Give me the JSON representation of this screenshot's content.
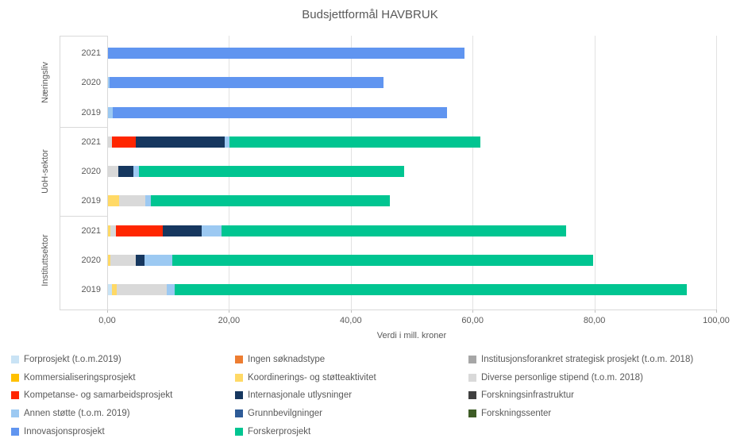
{
  "chart_data": {
    "type": "bar",
    "orientation": "horizontal-stacked",
    "title": "Budsjettformål HAVBRUK",
    "xlabel": "Verdi i mill. kroner",
    "ylabel": "",
    "xlim": [
      0,
      100
    ],
    "grid": true,
    "legend_position": "bottom",
    "x_tick_values": [
      0,
      20,
      40,
      60,
      80,
      100
    ],
    "x_tick_labels": [
      "0,00",
      "20,00",
      "40,00",
      "60,00",
      "80,00",
      "100,00"
    ],
    "groups": [
      {
        "label": "Næringsliv",
        "rows": [
          {
            "year": "2021",
            "total": 58.5,
            "segments": [
              {
                "series": "Innovasjonsprosjekt",
                "value": 58.5
              }
            ]
          },
          {
            "year": "2020",
            "total": 45.2,
            "segments": [
              {
                "series": "Annen støtte (t.o.m. 2019)",
                "value": 0.3
              },
              {
                "series": "Innovasjonsprosjekt",
                "value": 44.9
              }
            ]
          },
          {
            "year": "2019",
            "total": 55.7,
            "segments": [
              {
                "series": "Annen støtte (t.o.m. 2019)",
                "value": 0.8
              },
              {
                "series": "Innovasjonsprosjekt",
                "value": 54.9
              }
            ]
          }
        ]
      },
      {
        "label": "UoH-sektor",
        "rows": [
          {
            "year": "2021",
            "total": 61.1,
            "segments": [
              {
                "series": "Diverse personlige stipend (t.o.m. 2018)",
                "value": 0.6
              },
              {
                "series": "Kompetanse- og samarbeidsprosjekt",
                "value": 3.9
              },
              {
                "series": "Internasjonale utlysninger",
                "value": 14.7
              },
              {
                "series": "Annen støtte (t.o.m. 2019)",
                "value": 0.8
              },
              {
                "series": "Forskerprosjekt",
                "value": 41.1
              }
            ]
          },
          {
            "year": "2020",
            "total": 48.6,
            "segments": [
              {
                "series": "Diverse personlige stipend (t.o.m. 2018)",
                "value": 1.7
              },
              {
                "series": "Internasjonale utlysninger",
                "value": 2.5
              },
              {
                "series": "Annen støtte (t.o.m. 2019)",
                "value": 0.9
              },
              {
                "series": "Forskerprosjekt",
                "value": 43.5
              }
            ]
          },
          {
            "year": "2019",
            "total": 46.3,
            "segments": [
              {
                "series": "Koordinerings- og støtteaktivitet",
                "value": 1.8
              },
              {
                "series": "Diverse personlige stipend (t.o.m. 2018)",
                "value": 4.3
              },
              {
                "series": "Annen støtte (t.o.m. 2019)",
                "value": 1.0
              },
              {
                "series": "Forskerprosjekt",
                "value": 39.2
              }
            ]
          }
        ]
      },
      {
        "label": "Instituttsektor",
        "rows": [
          {
            "year": "2021",
            "total": 75.2,
            "segments": [
              {
                "series": "Koordinerings- og støtteaktivitet",
                "value": 0.4
              },
              {
                "series": "Diverse personlige stipend (t.o.m. 2018)",
                "value": 0.9
              },
              {
                "series": "Kompetanse- og samarbeidsprosjekt",
                "value": 7.7
              },
              {
                "series": "Internasjonale utlysninger",
                "value": 6.4
              },
              {
                "series": "Annen støtte (t.o.m. 2019)",
                "value": 3.2
              },
              {
                "series": "Forskerprosjekt",
                "value": 56.6
              }
            ]
          },
          {
            "year": "2020",
            "total": 79.7,
            "segments": [
              {
                "series": "Koordinerings- og støtteaktivitet",
                "value": 0.4
              },
              {
                "series": "Diverse personlige stipend (t.o.m. 2018)",
                "value": 4.2
              },
              {
                "series": "Internasjonale utlysninger",
                "value": 1.4
              },
              {
                "series": "Annen støtte (t.o.m. 2019)",
                "value": 4.6
              },
              {
                "series": "Forskerprosjekt",
                "value": 69.1
              }
            ]
          },
          {
            "year": "2019",
            "total": 95.0,
            "segments": [
              {
                "series": "Forprosjekt (t.o.m.2019)",
                "value": 0.6
              },
              {
                "series": "Koordinerings- og støtteaktivitet",
                "value": 0.8
              },
              {
                "series": "Diverse personlige stipend (t.o.m. 2018)",
                "value": 8.2
              },
              {
                "series": "Annen støtte (t.o.m. 2019)",
                "value": 1.3
              },
              {
                "series": "Forskerprosjekt",
                "value": 84.1
              }
            ]
          }
        ]
      }
    ],
    "series_colors": {
      "Forprosjekt (t.o.m.2019)": "#C9E3F5",
      "Kommersialiseringsprosjekt": "#FFC000",
      "Kompetanse- og samarbeidsprosjekt": "#FF2600",
      "Annen støtte (t.o.m. 2019)": "#9CC9F2",
      "Innovasjonsprosjekt": "#6095F0",
      "Ingen søknadstype": "#ED7D31",
      "Koordinerings- og støtteaktivitet": "#FFD966",
      "Internasjonale utlysninger": "#16375F",
      "Grunnbevilgninger": "#2E5B97",
      "Institusjonsforankret strategisk prosjekt (t.o.m. 2018)": "#A6A6A6",
      "Diverse personlige stipend (t.o.m. 2018)": "#D9D9D9",
      "Forskningsinfrastruktur": "#404040",
      "Forskningssenter": "#3E5C26",
      "Forskerprosjekt": "#00C591"
    },
    "legend_columns": [
      [
        "Forprosjekt (t.o.m.2019)",
        "Kommersialiseringsprosjekt",
        "Kompetanse- og samarbeidsprosjekt",
        "Annen støtte (t.o.m. 2019)",
        "Innovasjonsprosjekt"
      ],
      [
        "Ingen søknadstype",
        "Koordinerings- og støtteaktivitet",
        "Internasjonale utlysninger",
        "Grunnbevilgninger",
        "Forskerprosjekt"
      ],
      [
        "Institusjonsforankret strategisk prosjekt (t.o.m. 2018)",
        "Diverse personlige stipend (t.o.m. 2018)",
        "Forskningsinfrastruktur",
        "Forskningssenter"
      ]
    ]
  }
}
